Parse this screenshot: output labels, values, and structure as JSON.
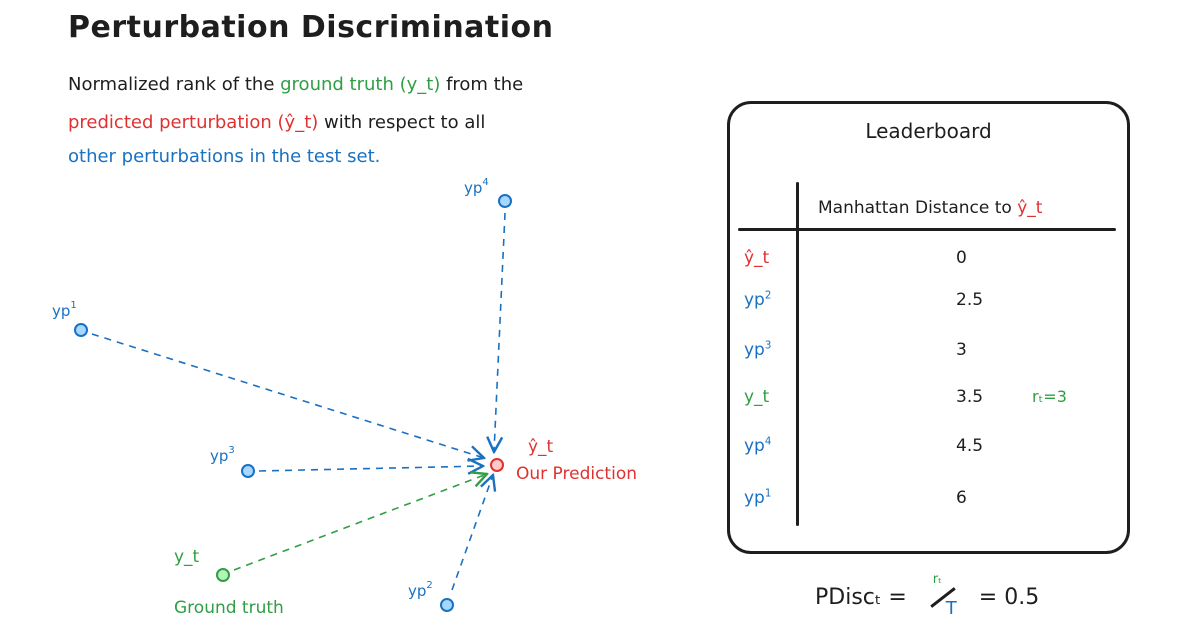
{
  "title": "Perturbation Discrimination",
  "description": {
    "line1_pre": "Normalized rank of the ",
    "line1_green": "ground truth (y_t)",
    "line1_post": " from the",
    "line2_red": "predicted perturbation (ŷ_t)",
    "line2_post": " with respect to all",
    "line3_blue": "other perturbations in the test set."
  },
  "colors": {
    "green": "#2f9e44",
    "red": "#e03131",
    "blue": "#1971c2",
    "ink": "#1e1e1e"
  },
  "diagram": {
    "prediction_label": "ŷ_t",
    "prediction_caption": "Our Prediction",
    "ground_truth_label": "y_t",
    "ground_truth_caption": "Ground truth",
    "perturbations": [
      {
        "base": "yp",
        "sup": "1"
      },
      {
        "base": "yp",
        "sup": "2"
      },
      {
        "base": "yp",
        "sup": "3"
      },
      {
        "base": "yp",
        "sup": "4"
      }
    ]
  },
  "leaderboard": {
    "title": "Leaderboard",
    "column_header_pre": "Manhattan Distance to ",
    "column_header_target": "ŷ_t",
    "rows": [
      {
        "name": "ŷ_t",
        "sup": "",
        "value": "0",
        "note": "",
        "color": "red"
      },
      {
        "name": "yp",
        "sup": "2",
        "value": "2.5",
        "note": "",
        "color": "blue"
      },
      {
        "name": "yp",
        "sup": "3",
        "value": "3",
        "note": "",
        "color": "blue"
      },
      {
        "name": "y_t",
        "sup": "",
        "value": "3.5",
        "note": "rₜ=3",
        "color": "green"
      },
      {
        "name": "yp",
        "sup": "4",
        "value": "4.5",
        "note": "",
        "color": "blue"
      },
      {
        "name": "yp",
        "sup": "1",
        "value": "6",
        "note": "",
        "color": "blue"
      }
    ]
  },
  "formula": {
    "lhs": "PDiscₜ =",
    "numerator": "rₜ",
    "denominator": "T",
    "rhs": "= 0.5"
  }
}
